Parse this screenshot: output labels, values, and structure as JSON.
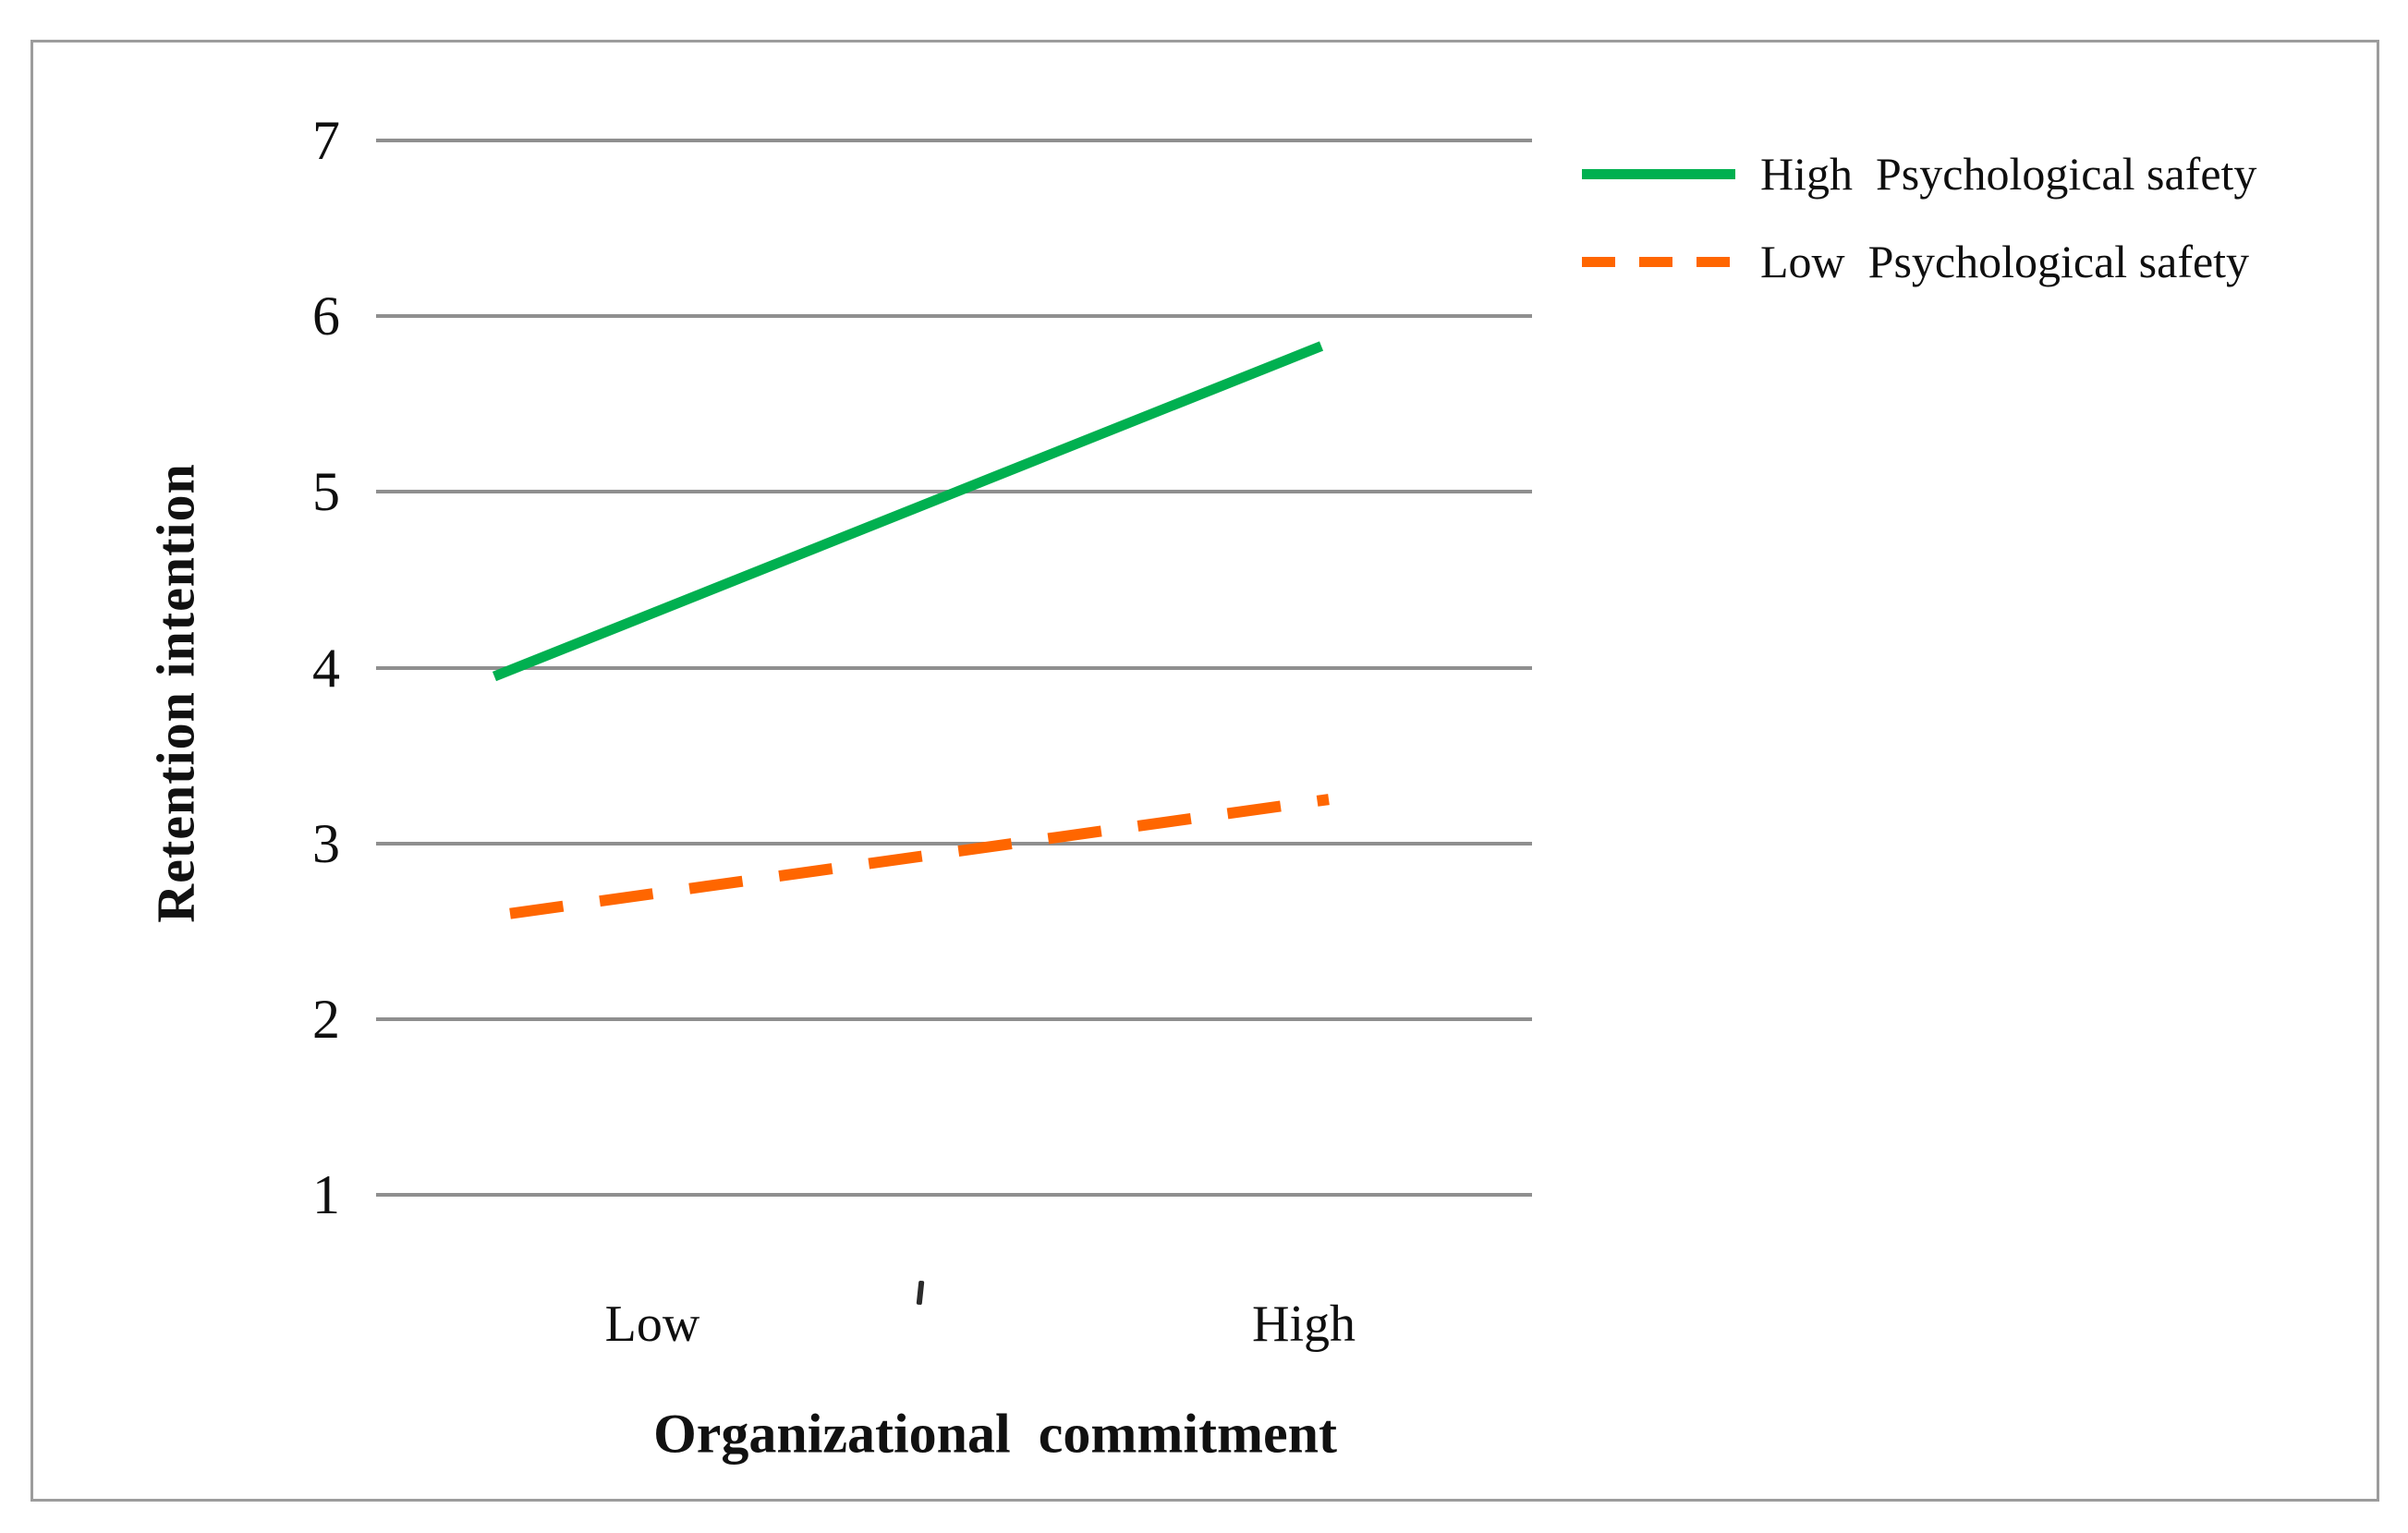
{
  "figure": {
    "y_axis": {
      "title": "Retention intention",
      "ticks": [
        "7",
        "6",
        "5",
        "4",
        "3",
        "2",
        "1"
      ]
    },
    "x_axis": {
      "title": "Organizational  commitment",
      "labels": [
        "Low",
        "High"
      ]
    },
    "legend": [
      {
        "label": "High  Psychological safety",
        "color": "#00b050",
        "style": "solid"
      },
      {
        "label": "Low  Psychological safety",
        "color": "#ff6600",
        "style": "dashed"
      }
    ]
  },
  "chart_data": {
    "type": "line",
    "categories": [
      "Low",
      "High"
    ],
    "series": [
      {
        "name": "High Psychological safety",
        "values": [
          3.95,
          5.83
        ],
        "color": "#00b050",
        "style": "solid"
      },
      {
        "name": "Low Psychological safety",
        "values": [
          2.6,
          3.25
        ],
        "color": "#ff6600",
        "style": "dashed"
      }
    ],
    "title": "",
    "xlabel": "Organizational commitment",
    "ylabel": "Retention intention",
    "ylim": [
      1,
      7
    ],
    "yticks": [
      7,
      6,
      5,
      4,
      3,
      2,
      1
    ],
    "grid": "horizontal",
    "gridline_color": "#8f8f8f",
    "legend_position": "top-right"
  }
}
